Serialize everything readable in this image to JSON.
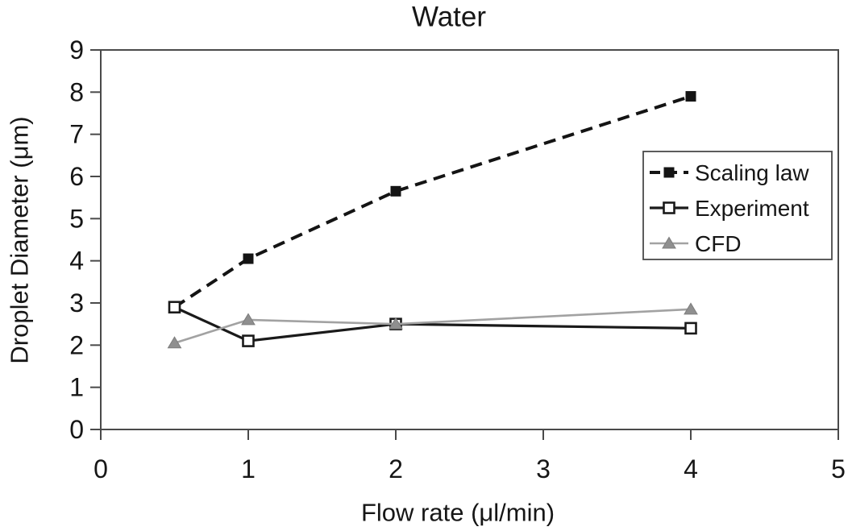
{
  "figure": {
    "title": "Water",
    "x_axis_label": "Flow rate (μl/min)",
    "y_axis_label": "Droplet Diameter (μm)"
  },
  "chart_data": {
    "type": "line",
    "title": "Water",
    "xlabel": "Flow rate (μl/min)",
    "ylabel": "Droplet Diameter (μm)",
    "xlim": [
      0,
      5
    ],
    "ylim": [
      0,
      9
    ],
    "xticks": [
      0,
      1,
      2,
      3,
      4,
      5
    ],
    "yticks": [
      0,
      1,
      2,
      3,
      4,
      5,
      6,
      7,
      8,
      9
    ],
    "grid": false,
    "legend_position": "inside-right",
    "x": [
      0.5,
      1,
      2,
      4
    ],
    "series": [
      {
        "name": "Scaling law",
        "values": [
          2.9,
          4.05,
          5.65,
          7.9
        ],
        "line_color": "#141414",
        "line_style": "dashed",
        "line_width": 4,
        "marker": "filled-square",
        "marker_color": "#141414"
      },
      {
        "name": "Experiment",
        "values": [
          2.9,
          2.1,
          2.5,
          2.4
        ],
        "line_color": "#1a1a1a",
        "line_style": "solid",
        "line_width": 3.2,
        "marker": "open-square",
        "marker_color": "#1a1a1a"
      },
      {
        "name": "CFD",
        "values": [
          2.05,
          2.6,
          2.5,
          2.85
        ],
        "line_color": "#a2a2a2",
        "line_style": "solid",
        "line_width": 2.6,
        "marker": "filled-triangle",
        "marker_color": "#8f8f8f"
      }
    ],
    "frame_color": "#4a4a4a",
    "text_color": "#161616"
  }
}
